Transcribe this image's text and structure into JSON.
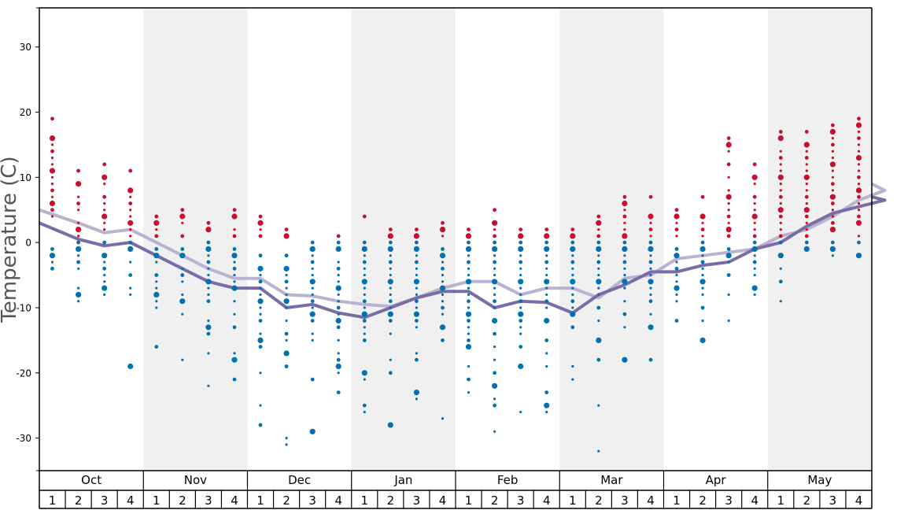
{
  "chart_data": {
    "type": "scatter",
    "ylabel": "Temperature (C)",
    "ylim": [
      -35,
      36
    ],
    "yticks": [
      30,
      20,
      10,
      0,
      -10,
      -20,
      -30
    ],
    "months": [
      "Oct",
      "Nov",
      "Dec",
      "Jan",
      "Feb",
      "Mar",
      "Apr",
      "May"
    ],
    "weeks": [
      "1",
      "2",
      "3",
      "4"
    ],
    "grid": "alternating month bands",
    "colors": {
      "warm_points": "#c8102e",
      "cold_points": "#0072b2",
      "light_line": "#b9b2d0",
      "dark_line": "#7b6ba7",
      "band": "#f0f0f0"
    },
    "series": [
      {
        "values": [
          5,
          3,
          1.5,
          2,
          0,
          -2,
          -4,
          -5.5,
          -5.5,
          -8,
          -8.2,
          -9,
          -9.5,
          -9.8,
          -8.5,
          -7,
          -6,
          -6,
          -8,
          -7,
          -7,
          -8.5,
          -5.5,
          -5,
          -2.5,
          -2,
          -1.5,
          -1,
          1,
          2,
          4,
          6.5,
          8,
          9
        ]
      },
      {
        "values": [
          3,
          0.5,
          -0.5,
          0,
          -2,
          -4,
          -6,
          -7,
          -7,
          -10,
          -9.5,
          -10.8,
          -11.5,
          -10,
          -8.5,
          -7.5,
          -7.5,
          -10,
          -9,
          -9.2,
          -10.8,
          -8,
          -6.5,
          -4.5,
          -4.5,
          -3.5,
          -3,
          -1,
          0,
          2.5,
          4.5,
          5.5,
          6.5,
          7
        ]
      }
    ],
    "points": [
      {
        "week": "Oct 1",
        "warm": [
          19,
          16,
          15,
          14,
          13,
          12,
          11,
          10,
          9,
          8,
          7,
          6,
          5,
          4
        ],
        "cold": [
          -1,
          -2,
          -3,
          -4
        ]
      },
      {
        "week": "Oct 2",
        "warm": [
          11,
          9,
          7,
          6,
          5,
          3,
          2,
          1
        ],
        "cold": [
          0,
          -1,
          -2,
          -3,
          -4,
          -7,
          -8,
          -9
        ]
      },
      {
        "week": "Oct 3",
        "warm": [
          12,
          10,
          9,
          7,
          6,
          5,
          4,
          3,
          2
        ],
        "cold": [
          0,
          -2,
          -3,
          -4,
          -5,
          -6,
          -7,
          -8
        ]
      },
      {
        "week": "Oct 4",
        "warm": [
          11,
          8,
          7,
          6,
          5,
          4,
          3,
          2,
          1
        ],
        "cold": [
          0,
          -1,
          -3,
          -5,
          -7,
          -8,
          -19
        ]
      },
      {
        "week": "Nov 1",
        "warm": [
          4,
          3,
          2,
          1
        ],
        "cold": [
          -1,
          -2,
          -3,
          -5,
          -6,
          -7,
          -8,
          -9,
          -10,
          -16
        ]
      },
      {
        "week": "Nov 2",
        "warm": [
          5,
          4,
          3,
          1
        ],
        "cold": [
          -1,
          -2,
          -4,
          -5,
          -6,
          -8,
          -9,
          -11,
          -18
        ]
      },
      {
        "week": "Nov 3",
        "warm": [
          3,
          2
        ],
        "cold": [
          0,
          -1,
          -2,
          -3,
          -4,
          -5,
          -6,
          -7,
          -8,
          -9,
          -12,
          -13,
          -14,
          -17,
          -22
        ]
      },
      {
        "week": "Nov 4",
        "warm": [
          5,
          4,
          2,
          1
        ],
        "cold": [
          -1,
          -2,
          -3,
          -4,
          -5,
          -6,
          -7,
          -9,
          -11,
          -13,
          -17,
          -18,
          -21
        ]
      },
      {
        "week": "Dec 1",
        "warm": [
          4,
          3,
          2,
          1
        ],
        "cold": [
          -2,
          -4,
          -5,
          -6,
          -7,
          -8,
          -9,
          -10,
          -11,
          -12,
          -14,
          -15,
          -16,
          -20,
          -25,
          -28
        ]
      },
      {
        "week": "Dec 2",
        "warm": [
          2,
          1
        ],
        "cold": [
          -2,
          -4,
          -5,
          -6,
          -7,
          -8,
          -9,
          -10,
          -12,
          -14,
          -15,
          -17,
          -19,
          -30,
          -31
        ]
      },
      {
        "week": "Dec 3",
        "cold": [
          0,
          -1,
          -2,
          -3,
          -4,
          -5,
          -6,
          -7,
          -8,
          -9,
          -10,
          -11,
          -12,
          -14,
          -15,
          -21,
          -29
        ]
      },
      {
        "week": "Dec 4",
        "warm": [
          1
        ],
        "cold": [
          0,
          -1,
          -3,
          -4,
          -5,
          -6,
          -7,
          -8,
          -9,
          -10,
          -11,
          -12,
          -13,
          -15,
          -17,
          -18,
          -19,
          -20,
          -23
        ]
      },
      {
        "week": "Jan 1",
        "warm": [
          4
        ],
        "cold": [
          0,
          -1,
          -2,
          -3,
          -4,
          -5,
          -6,
          -7,
          -8,
          -9,
          -10,
          -11,
          -12,
          -13,
          -14,
          -15,
          -20,
          -21,
          -25,
          -26
        ]
      },
      {
        "week": "Jan 2",
        "warm": [
          2,
          1
        ],
        "cold": [
          0,
          -1,
          -2,
          -3,
          -4,
          -5,
          -6,
          -7,
          -8,
          -9,
          -10,
          -11,
          -12,
          -14,
          -18,
          -20,
          -28
        ]
      },
      {
        "week": "Jan 3",
        "warm": [
          2,
          1
        ],
        "cold": [
          0,
          -1,
          -2,
          -3,
          -4,
          -5,
          -6,
          -7,
          -8,
          -9,
          -10,
          -11,
          -12,
          -13,
          -17,
          -18,
          -23,
          -24
        ]
      },
      {
        "week": "Jan 4",
        "warm": [
          3,
          2,
          1
        ],
        "cold": [
          -1,
          -2,
          -3,
          -4,
          -5,
          -6,
          -7,
          -8,
          -9,
          -10,
          -11,
          -13,
          -15,
          -27
        ]
      },
      {
        "week": "Feb 1",
        "warm": [
          2,
          1
        ],
        "cold": [
          0,
          -1,
          -2,
          -3,
          -4,
          -5,
          -6,
          -7,
          -8,
          -9,
          -10,
          -11,
          -12,
          -13,
          -14,
          -15,
          -16,
          -19,
          -21,
          -23
        ]
      },
      {
        "week": "Feb 2",
        "warm": [
          5,
          3,
          2,
          1
        ],
        "cold": [
          0,
          -1,
          -2,
          -3,
          -4,
          -5,
          -6,
          -7,
          -8,
          -9,
          -10,
          -12,
          -14,
          -16,
          -18,
          -20,
          -22,
          -24,
          -25,
          -29
        ]
      },
      {
        "week": "Feb 3",
        "warm": [
          2,
          1
        ],
        "cold": [
          0,
          -1,
          -2,
          -3,
          -4,
          -5,
          -6,
          -7,
          -8,
          -9,
          -10,
          -11,
          -12,
          -13,
          -14,
          -16,
          -19,
          -26
        ]
      },
      {
        "week": "Feb 4",
        "warm": [
          2,
          1
        ],
        "cold": [
          0,
          -1,
          -2,
          -3,
          -4,
          -5,
          -6,
          -7,
          -8,
          -9,
          -10,
          -12,
          -15,
          -17,
          -19,
          -23,
          -25,
          -26
        ]
      },
      {
        "week": "Mar 1",
        "warm": [
          2,
          1
        ],
        "cold": [
          0,
          -1,
          -2,
          -3,
          -4,
          -5,
          -6,
          -7,
          -8,
          -9,
          -10,
          -11,
          -13,
          -19,
          -21
        ]
      },
      {
        "week": "Mar 2",
        "warm": [
          4,
          3,
          2,
          1
        ],
        "cold": [
          0,
          -1,
          -2,
          -3,
          -4,
          -5,
          -6,
          -7,
          -8,
          -10,
          -12,
          -15,
          -18,
          -25,
          -32
        ]
      },
      {
        "week": "Mar 3",
        "warm": [
          7,
          6,
          5,
          4,
          3,
          2,
          1
        ],
        "cold": [
          0,
          -1,
          -2,
          -3,
          -4,
          -5,
          -6,
          -7,
          -9,
          -11,
          -13,
          -18
        ]
      },
      {
        "week": "Mar 4",
        "warm": [
          7,
          4,
          3,
          2,
          1
        ],
        "cold": [
          0,
          -1,
          -2,
          -3,
          -4,
          -5,
          -6,
          -7,
          -8,
          -9,
          -11,
          -13,
          -18
        ]
      },
      {
        "week": "Apr 1",
        "warm": [
          5,
          4,
          3,
          2,
          1
        ],
        "cold": [
          -1,
          -2,
          -3,
          -4,
          -5,
          -6,
          -7,
          -8,
          -9,
          -12
        ]
      },
      {
        "week": "Apr 2",
        "warm": [
          7,
          4,
          3,
          2,
          1
        ],
        "cold": [
          0,
          -1,
          -2,
          -3,
          -4,
          -5,
          -6,
          -7,
          -8,
          -10,
          -12,
          -15
        ]
      },
      {
        "week": "Apr 3",
        "warm": [
          16,
          15,
          14,
          12,
          10,
          8,
          7,
          6,
          5,
          4,
          3,
          2,
          1
        ],
        "cold": [
          -1,
          -2,
          -3,
          -5,
          -8,
          -12
        ]
      },
      {
        "week": "Apr 4",
        "warm": [
          12,
          10,
          9,
          7,
          6,
          5,
          4,
          3,
          2,
          1
        ],
        "cold": [
          0,
          -1,
          -2,
          -3,
          -4,
          -5,
          -7,
          -8
        ]
      },
      {
        "week": "May 1",
        "warm": [
          17,
          16,
          14,
          13,
          12,
          11,
          10,
          9,
          8,
          7,
          6,
          5,
          4,
          3,
          2,
          1
        ],
        "cold": [
          0,
          -2,
          -4,
          -6,
          -9
        ]
      },
      {
        "week": "May 2",
        "warm": [
          17,
          15,
          14,
          13,
          12,
          11,
          10,
          9,
          8,
          7,
          6,
          5,
          4,
          3,
          2,
          1
        ],
        "cold": [
          0,
          -1
        ]
      },
      {
        "week": "May 3",
        "warm": [
          18,
          17,
          16,
          15,
          14,
          13,
          12,
          11,
          10,
          9,
          8,
          7,
          6,
          5,
          4,
          3,
          2
        ],
        "cold": [
          0,
          -1,
          -2
        ]
      },
      {
        "week": "May 4",
        "warm": [
          19,
          18,
          17,
          16,
          15,
          14,
          13,
          12,
          11,
          10,
          9,
          8,
          7,
          6,
          5,
          4,
          3,
          1
        ],
        "cold": [
          0,
          -2
        ]
      }
    ]
  }
}
